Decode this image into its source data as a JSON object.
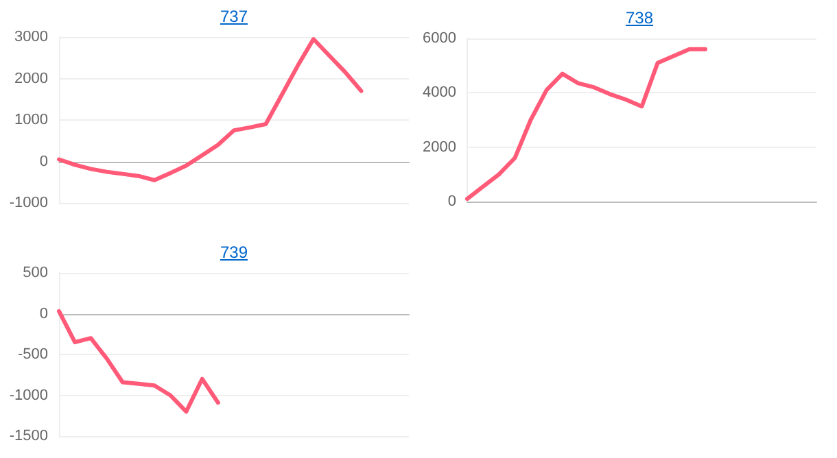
{
  "chart_data": [
    {
      "type": "line",
      "title": "737",
      "categories": [
        null,
        null,
        null,
        null,
        null,
        null,
        null,
        null,
        null,
        null,
        null,
        null,
        null,
        null,
        null,
        null,
        null,
        null,
        null,
        null,
        null,
        null,
        null
      ],
      "values": [
        50,
        -80,
        -180,
        -250,
        -300,
        -350,
        -450,
        -280,
        -100,
        150,
        400,
        750,
        820,
        900,
        1600,
        2300,
        2950,
        2550,
        2150,
        1700,
        null,
        null,
        null
      ],
      "color": "#ff5a78",
      "ylim": [
        -1000,
        3000
      ],
      "yticks": [
        -1000,
        0,
        1000,
        2000,
        3000
      ],
      "grid": "y",
      "marker": "none",
      "tick_labels": "y"
    },
    {
      "type": "line",
      "title": "738",
      "categories": [
        null,
        null,
        null,
        null,
        null,
        null,
        null,
        null,
        null,
        null,
        null,
        null,
        null,
        null,
        null,
        null,
        null,
        null,
        null,
        null,
        null,
        null,
        null
      ],
      "values": [
        100,
        550,
        1000,
        1600,
        3000,
        4100,
        4700,
        4350,
        4200,
        3950,
        3750,
        3500,
        5100,
        5350,
        5600,
        5600,
        null,
        null,
        null,
        null,
        null,
        null,
        null
      ],
      "color": "#ff5a78",
      "ylim": [
        0,
        6000
      ],
      "yticks": [
        0,
        2000,
        4000,
        6000
      ],
      "grid": "y",
      "marker": "none",
      "tick_labels": "y"
    },
    {
      "type": "line",
      "title": "739",
      "categories": [
        null,
        null,
        null,
        null,
        null,
        null,
        null,
        null,
        null,
        null,
        null,
        null,
        null,
        null,
        null,
        null,
        null,
        null,
        null,
        null,
        null,
        null,
        null
      ],
      "values": [
        30,
        -350,
        -300,
        -550,
        -840,
        -860,
        -880,
        -1000,
        -1200,
        -800,
        -1090,
        null,
        null,
        null,
        null,
        null,
        null,
        null,
        null,
        null,
        null,
        null,
        null
      ],
      "color": "#ff5a78",
      "ylim": [
        -1500,
        500
      ],
      "yticks": [
        -1500,
        -1000,
        -500,
        0,
        500
      ],
      "grid": "y",
      "marker": "none",
      "tick_labels": "y"
    }
  ]
}
